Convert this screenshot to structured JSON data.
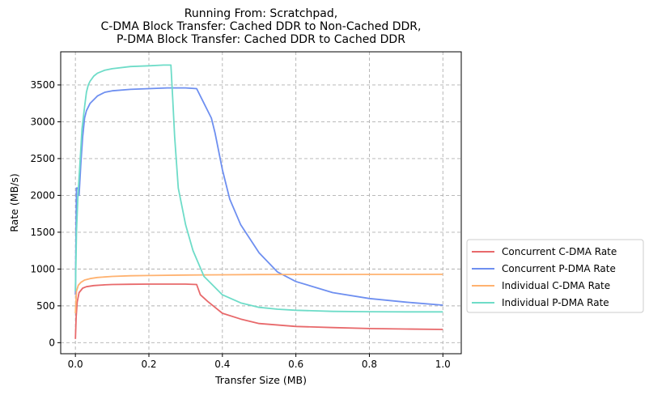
{
  "chart_data": {
    "type": "line",
    "title_lines": [
      "Running From: Scratchpad,",
      "C-DMA Block Transfer: Cached DDR to Non-Cached DDR,",
      "P-DMA Block Transfer: Cached DDR to Cached DDR"
    ],
    "xlabel": "Transfer Size (MB)",
    "ylabel": "Rate (MB/s)",
    "xlim": [
      -0.04,
      1.05
    ],
    "ylim": [
      -150,
      3950
    ],
    "xticks": [
      0.0,
      0.2,
      0.4,
      0.6,
      0.8,
      1.0
    ],
    "xtick_labels": [
      "0.0",
      "0.2",
      "0.4",
      "0.6",
      "0.8",
      "1.0"
    ],
    "yticks": [
      0,
      500,
      1000,
      1500,
      2000,
      2500,
      3000,
      3500
    ],
    "ytick_labels": [
      "0",
      "500",
      "1000",
      "1500",
      "2000",
      "2500",
      "3000",
      "3500"
    ],
    "grid": true,
    "legend_position": "outside-right-bottom",
    "series": [
      {
        "name": "Concurrent C-DMA Rate",
        "color": "#e8696b",
        "x": [
          0.0,
          0.002,
          0.005,
          0.01,
          0.02,
          0.03,
          0.05,
          0.08,
          0.1,
          0.15,
          0.2,
          0.25,
          0.3,
          0.33,
          0.34,
          0.36,
          0.38,
          0.4,
          0.45,
          0.5,
          0.6,
          0.7,
          0.8,
          0.9,
          1.0
        ],
        "y": [
          50,
          350,
          550,
          680,
          740,
          760,
          775,
          785,
          790,
          793,
          795,
          795,
          795,
          790,
          650,
          560,
          480,
          400,
          320,
          260,
          220,
          205,
          192,
          185,
          180
        ]
      },
      {
        "name": "Concurrent P-DMA Rate",
        "color": "#6e8ff0",
        "x": [
          0.0,
          0.003,
          0.007,
          0.01,
          0.015,
          0.02,
          0.025,
          0.03,
          0.04,
          0.06,
          0.08,
          0.1,
          0.15,
          0.2,
          0.25,
          0.3,
          0.33,
          0.35,
          0.37,
          0.38,
          0.4,
          0.42,
          0.45,
          0.5,
          0.55,
          0.6,
          0.7,
          0.8,
          0.9,
          1.0
        ],
        "y": [
          650,
          2100,
          2100,
          2000,
          2450,
          2800,
          3050,
          3150,
          3250,
          3350,
          3400,
          3420,
          3440,
          3450,
          3460,
          3460,
          3450,
          3250,
          3050,
          2850,
          2350,
          1950,
          1600,
          1220,
          960,
          830,
          680,
          600,
          550,
          510
        ]
      },
      {
        "name": "Individual C-DMA Rate",
        "color": "#ffb270",
        "x": [
          0.0,
          0.003,
          0.008,
          0.015,
          0.025,
          0.04,
          0.06,
          0.1,
          0.15,
          0.2,
          0.3,
          0.4,
          0.5,
          0.6,
          0.7,
          0.8,
          0.9,
          1.0
        ],
        "y": [
          400,
          700,
          780,
          820,
          850,
          870,
          885,
          900,
          908,
          912,
          918,
          922,
          925,
          926,
          926,
          927,
          927,
          928
        ]
      },
      {
        "name": "Individual P-DMA Rate",
        "color": "#6edcc8",
        "x": [
          0.0,
          0.003,
          0.007,
          0.012,
          0.018,
          0.025,
          0.03,
          0.035,
          0.04,
          0.05,
          0.06,
          0.08,
          0.1,
          0.15,
          0.2,
          0.24,
          0.26,
          0.265,
          0.27,
          0.28,
          0.3,
          0.32,
          0.35,
          0.4,
          0.45,
          0.5,
          0.55,
          0.6,
          0.7,
          0.8,
          0.9,
          1.0
        ],
        "y": [
          700,
          1500,
          2000,
          2400,
          2900,
          3200,
          3400,
          3500,
          3550,
          3620,
          3660,
          3700,
          3720,
          3750,
          3760,
          3770,
          3770,
          3300,
          2800,
          2100,
          1600,
          1250,
          900,
          650,
          540,
          480,
          455,
          440,
          425,
          420,
          418,
          418
        ]
      }
    ]
  }
}
